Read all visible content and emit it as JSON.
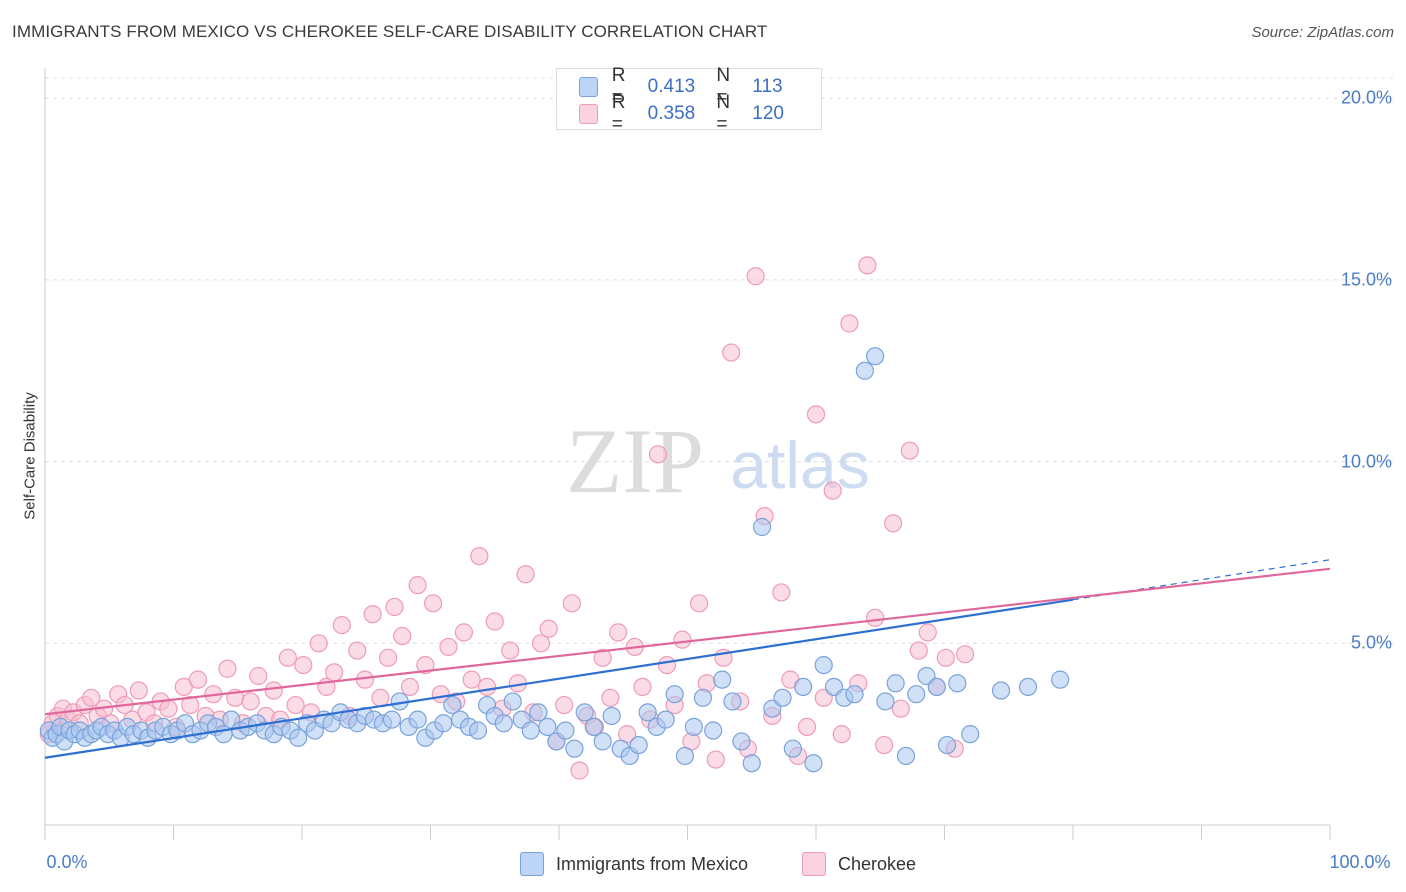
{
  "header": {
    "title": "IMMIGRANTS FROM MEXICO VS CHEROKEE SELF-CARE DISABILITY CORRELATION CHART",
    "source": "Source: ZipAtlas.com"
  },
  "watermark": {
    "zip": "ZIP",
    "atlas": "atlas"
  },
  "legend": {
    "rows": [
      {
        "r_key": "R =",
        "r_val": "0.413",
        "n_key": "N =",
        "n_val": "113"
      },
      {
        "r_key": "R =",
        "r_val": "0.358",
        "n_key": "N =",
        "n_val": "120"
      }
    ]
  },
  "colors": {
    "mexico_fill": "#a9c6ef",
    "mexico_stroke": "#7aa3db",
    "mexico_line": "#2e6fd1",
    "cherokee_fill": "#f7bfd1",
    "cherokee_stroke": "#ee9bb7",
    "cherokee_line": "#e0679a",
    "tick_label": "#4a7cc9",
    "grid": "#dedede"
  },
  "chart_data": {
    "type": "scatter",
    "title": "IMMIGRANTS FROM MEXICO VS CHEROKEE SELF-CARE DISABILITY CORRELATION CHART",
    "xlabel": "",
    "ylabel": "Self-Care Disability",
    "xlim": [
      0,
      100
    ],
    "ylim": [
      0,
      20.5
    ],
    "x_tick_labels": [
      "0.0%",
      "100.0%"
    ],
    "y_ticks": [
      5,
      10,
      15,
      20
    ],
    "y_tick_labels": [
      "5.0%",
      "10.0%",
      "15.0%",
      "20.0%"
    ],
    "grid": true,
    "legend_position": "top-center",
    "series": [
      {
        "name": "Immigrants from Mexico",
        "R": 0.413,
        "N": 113,
        "trend": {
          "x0": 0,
          "y0": 1.85,
          "x1": 80,
          "y1": 6.2,
          "dash_to_x": 100,
          "dash_to_y": 7.3
        },
        "points": [
          [
            0.3,
            2.6
          ],
          [
            0.6,
            2.4
          ],
          [
            0.9,
            2.5
          ],
          [
            1.2,
            2.7
          ],
          [
            1.5,
            2.3
          ],
          [
            1.9,
            2.6
          ],
          [
            2.3,
            2.5
          ],
          [
            2.7,
            2.6
          ],
          [
            3.1,
            2.4
          ],
          [
            3.6,
            2.5
          ],
          [
            4.0,
            2.6
          ],
          [
            4.4,
            2.7
          ],
          [
            4.9,
            2.5
          ],
          [
            5.4,
            2.6
          ],
          [
            5.9,
            2.4
          ],
          [
            6.4,
            2.7
          ],
          [
            6.9,
            2.5
          ],
          [
            7.5,
            2.6
          ],
          [
            8.0,
            2.4
          ],
          [
            8.6,
            2.6
          ],
          [
            9.2,
            2.7
          ],
          [
            9.8,
            2.5
          ],
          [
            10.3,
            2.6
          ],
          [
            10.9,
            2.8
          ],
          [
            11.5,
            2.5
          ],
          [
            12.1,
            2.6
          ],
          [
            12.7,
            2.8
          ],
          [
            13.3,
            2.7
          ],
          [
            13.9,
            2.5
          ],
          [
            14.5,
            2.9
          ],
          [
            15.2,
            2.6
          ],
          [
            15.8,
            2.7
          ],
          [
            16.5,
            2.8
          ],
          [
            17.1,
            2.6
          ],
          [
            17.8,
            2.5
          ],
          [
            18.4,
            2.7
          ],
          [
            19.1,
            2.6
          ],
          [
            19.7,
            2.4
          ],
          [
            20.4,
            2.8
          ],
          [
            21.0,
            2.6
          ],
          [
            21.7,
            2.9
          ],
          [
            22.3,
            2.8
          ],
          [
            23.0,
            3.1
          ],
          [
            23.6,
            2.9
          ],
          [
            24.3,
            2.8
          ],
          [
            24.9,
            3.0
          ],
          [
            25.6,
            2.9
          ],
          [
            26.3,
            2.8
          ],
          [
            27.0,
            2.9
          ],
          [
            27.6,
            3.4
          ],
          [
            28.3,
            2.7
          ],
          [
            29.0,
            2.9
          ],
          [
            29.6,
            2.4
          ],
          [
            30.3,
            2.6
          ],
          [
            31.0,
            2.8
          ],
          [
            31.7,
            3.3
          ],
          [
            32.3,
            2.9
          ],
          [
            33.0,
            2.7
          ],
          [
            33.7,
            2.6
          ],
          [
            34.4,
            3.3
          ],
          [
            35.0,
            3.0
          ],
          [
            35.7,
            2.8
          ],
          [
            36.4,
            3.4
          ],
          [
            37.1,
            2.9
          ],
          [
            37.8,
            2.6
          ],
          [
            38.4,
            3.1
          ],
          [
            39.1,
            2.7
          ],
          [
            39.8,
            2.3
          ],
          [
            40.5,
            2.6
          ],
          [
            41.2,
            2.1
          ],
          [
            42.0,
            3.1
          ],
          [
            42.7,
            2.7
          ],
          [
            43.4,
            2.3
          ],
          [
            44.1,
            3.0
          ],
          [
            44.8,
            2.1
          ],
          [
            45.5,
            1.9
          ],
          [
            46.2,
            2.2
          ],
          [
            46.9,
            3.1
          ],
          [
            47.6,
            2.7
          ],
          [
            48.3,
            2.9
          ],
          [
            49.0,
            3.6
          ],
          [
            49.8,
            1.9
          ],
          [
            50.5,
            2.7
          ],
          [
            51.2,
            3.5
          ],
          [
            52.0,
            2.6
          ],
          [
            52.7,
            4.0
          ],
          [
            53.5,
            3.4
          ],
          [
            54.2,
            2.3
          ],
          [
            55.0,
            1.7
          ],
          [
            55.8,
            8.2
          ],
          [
            56.6,
            3.2
          ],
          [
            57.4,
            3.5
          ],
          [
            58.2,
            2.1
          ],
          [
            59.0,
            3.8
          ],
          [
            59.8,
            1.7
          ],
          [
            60.6,
            4.4
          ],
          [
            61.4,
            3.8
          ],
          [
            62.2,
            3.5
          ],
          [
            63.0,
            3.6
          ],
          [
            63.8,
            12.5
          ],
          [
            64.6,
            12.9
          ],
          [
            65.4,
            3.4
          ],
          [
            66.2,
            3.9
          ],
          [
            67.0,
            1.9
          ],
          [
            67.8,
            3.6
          ],
          [
            68.6,
            4.1
          ],
          [
            69.4,
            3.8
          ],
          [
            70.2,
            2.2
          ],
          [
            71.0,
            3.9
          ],
          [
            72.0,
            2.5
          ],
          [
            74.4,
            3.7
          ],
          [
            76.5,
            3.8
          ],
          [
            79.0,
            4.0
          ]
        ]
      },
      {
        "name": "Cherokee",
        "R": 0.358,
        "N": 120,
        "trend": {
          "x0": 0,
          "y0": 3.05,
          "x1": 100,
          "y1": 7.05
        },
        "points": [
          [
            0.3,
            2.5
          ],
          [
            0.6,
            2.8
          ],
          [
            1.0,
            3.0
          ],
          [
            1.4,
            3.2
          ],
          [
            1.8,
            2.9
          ],
          [
            2.2,
            3.1
          ],
          [
            2.7,
            2.8
          ],
          [
            3.1,
            3.3
          ],
          [
            3.6,
            3.5
          ],
          [
            4.1,
            3.0
          ],
          [
            4.6,
            3.2
          ],
          [
            5.1,
            2.8
          ],
          [
            5.7,
            3.6
          ],
          [
            6.2,
            3.3
          ],
          [
            6.8,
            2.9
          ],
          [
            7.3,
            3.7
          ],
          [
            7.9,
            3.1
          ],
          [
            8.5,
            2.8
          ],
          [
            9.0,
            3.4
          ],
          [
            9.6,
            3.2
          ],
          [
            10.2,
            2.7
          ],
          [
            10.8,
            3.8
          ],
          [
            11.3,
            3.3
          ],
          [
            11.9,
            4.0
          ],
          [
            12.5,
            3.0
          ],
          [
            13.1,
            3.6
          ],
          [
            13.6,
            2.9
          ],
          [
            14.2,
            4.3
          ],
          [
            14.8,
            3.5
          ],
          [
            15.4,
            2.8
          ],
          [
            16.0,
            3.4
          ],
          [
            16.6,
            4.1
          ],
          [
            17.2,
            3.0
          ],
          [
            17.8,
            3.7
          ],
          [
            18.3,
            2.9
          ],
          [
            18.9,
            4.6
          ],
          [
            19.5,
            3.3
          ],
          [
            20.1,
            4.4
          ],
          [
            20.7,
            3.1
          ],
          [
            21.3,
            5.0
          ],
          [
            21.9,
            3.8
          ],
          [
            22.5,
            4.2
          ],
          [
            23.1,
            5.5
          ],
          [
            23.7,
            3.0
          ],
          [
            24.3,
            4.8
          ],
          [
            24.9,
            4.0
          ],
          [
            25.5,
            5.8
          ],
          [
            26.1,
            3.5
          ],
          [
            26.7,
            4.6
          ],
          [
            27.2,
            6.0
          ],
          [
            27.8,
            5.2
          ],
          [
            28.4,
            3.8
          ],
          [
            29.0,
            6.6
          ],
          [
            29.6,
            4.4
          ],
          [
            30.2,
            6.1
          ],
          [
            30.8,
            3.6
          ],
          [
            31.4,
            4.9
          ],
          [
            32.0,
            3.4
          ],
          [
            32.6,
            5.3
          ],
          [
            33.2,
            4.0
          ],
          [
            33.8,
            7.4
          ],
          [
            34.4,
            3.8
          ],
          [
            35.0,
            5.6
          ],
          [
            35.6,
            3.2
          ],
          [
            36.2,
            4.8
          ],
          [
            36.8,
            3.9
          ],
          [
            37.4,
            6.9
          ],
          [
            38.0,
            3.1
          ],
          [
            38.6,
            5.0
          ],
          [
            39.2,
            5.4
          ],
          [
            39.8,
            2.3
          ],
          [
            40.4,
            3.3
          ],
          [
            41.0,
            6.1
          ],
          [
            41.6,
            1.5
          ],
          [
            42.2,
            3.0
          ],
          [
            42.8,
            2.7
          ],
          [
            43.4,
            4.6
          ],
          [
            44.0,
            3.5
          ],
          [
            44.6,
            5.3
          ],
          [
            45.3,
            2.5
          ],
          [
            45.9,
            4.9
          ],
          [
            46.5,
            3.8
          ],
          [
            47.1,
            2.9
          ],
          [
            47.7,
            10.2
          ],
          [
            48.4,
            4.4
          ],
          [
            49.0,
            3.3
          ],
          [
            49.6,
            5.1
          ],
          [
            50.3,
            2.3
          ],
          [
            50.9,
            6.1
          ],
          [
            51.5,
            3.9
          ],
          [
            52.2,
            1.8
          ],
          [
            52.8,
            4.6
          ],
          [
            53.4,
            13.0
          ],
          [
            54.1,
            3.4
          ],
          [
            54.7,
            2.1
          ],
          [
            55.3,
            15.1
          ],
          [
            56.0,
            8.5
          ],
          [
            56.6,
            3.0
          ],
          [
            57.3,
            6.4
          ],
          [
            58.0,
            4.0
          ],
          [
            58.6,
            1.9
          ],
          [
            59.3,
            2.7
          ],
          [
            60.0,
            11.3
          ],
          [
            60.6,
            3.5
          ],
          [
            61.3,
            9.2
          ],
          [
            62.0,
            2.5
          ],
          [
            62.6,
            13.8
          ],
          [
            63.3,
            3.9
          ],
          [
            64.0,
            15.4
          ],
          [
            64.6,
            5.7
          ],
          [
            65.3,
            2.2
          ],
          [
            66.0,
            8.3
          ],
          [
            66.6,
            3.2
          ],
          [
            67.3,
            10.3
          ],
          [
            68.0,
            4.8
          ],
          [
            68.7,
            5.3
          ],
          [
            69.4,
            3.8
          ],
          [
            70.1,
            4.6
          ],
          [
            70.8,
            2.1
          ],
          [
            71.6,
            4.7
          ]
        ]
      }
    ]
  },
  "bottom_legend": {
    "mexico_label": "Immigrants from Mexico",
    "cherokee_label": "Cherokee"
  }
}
